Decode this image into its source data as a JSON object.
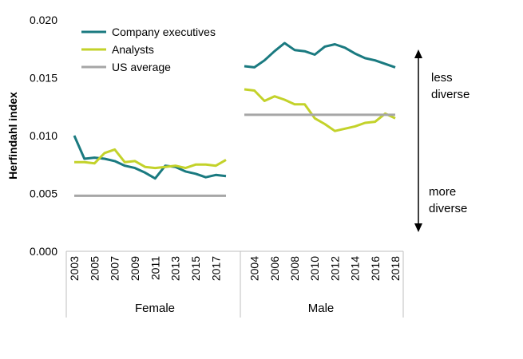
{
  "chart_data": {
    "type": "line",
    "title": "",
    "ylabel": "Herfindahl index",
    "ylim": [
      0,
      0.02
    ],
    "yticks": [
      "0.000",
      "0.005",
      "0.010",
      "0.015",
      "0.020"
    ],
    "grid": false,
    "legend_position": "top-left",
    "colors": {
      "Company executives": "#1a7a80",
      "Analysts": "#c3d22a",
      "US average": "#a6a6a6"
    },
    "groups": [
      {
        "name": "Female",
        "x": [
          2003,
          2004,
          2005,
          2006,
          2007,
          2008,
          2009,
          2010,
          2011,
          2012,
          2013,
          2014,
          2015,
          2016,
          2017,
          2018
        ],
        "xticks": [
          "2003",
          "2005",
          "2007",
          "2009",
          "2011",
          "2013",
          "2015",
          "2017"
        ],
        "series": [
          {
            "name": "Company executives",
            "values": [
              0.01,
              0.008,
              0.0081,
              0.008,
              0.0078,
              0.0074,
              0.0072,
              0.0068,
              0.0063,
              0.0074,
              0.0073,
              0.0069,
              0.0067,
              0.0064,
              0.0066,
              0.0065
            ]
          },
          {
            "name": "Analysts",
            "values": [
              0.0077,
              0.0077,
              0.0076,
              0.0085,
              0.0088,
              0.0077,
              0.0078,
              0.0073,
              0.0072,
              0.0073,
              0.0074,
              0.0072,
              0.0075,
              0.0075,
              0.0074,
              0.0079
            ]
          },
          {
            "name": "US average",
            "values": [
              0.0048,
              0.0048,
              0.0048,
              0.0048,
              0.0048,
              0.0048,
              0.0048,
              0.0048,
              0.0048,
              0.0048,
              0.0048,
              0.0048,
              0.0048,
              0.0048,
              0.0048,
              0.0048
            ]
          }
        ]
      },
      {
        "name": "Male",
        "x": [
          2003,
          2004,
          2005,
          2006,
          2007,
          2008,
          2009,
          2010,
          2011,
          2012,
          2013,
          2014,
          2015,
          2016,
          2017,
          2018
        ],
        "xticks": [
          "2004",
          "2006",
          "2008",
          "2010",
          "2012",
          "2014",
          "2016",
          "2018"
        ],
        "series": [
          {
            "name": "Company executives",
            "values": [
              0.016,
              0.0159,
              0.0165,
              0.0173,
              0.018,
              0.0174,
              0.0173,
              0.017,
              0.0177,
              0.0179,
              0.0176,
              0.0171,
              0.0167,
              0.0165,
              0.0162,
              0.0159
            ]
          },
          {
            "name": "Analysts",
            "values": [
              0.014,
              0.0139,
              0.013,
              0.0134,
              0.0131,
              0.0127,
              0.0127,
              0.0115,
              0.011,
              0.0104,
              0.0106,
              0.0108,
              0.0111,
              0.0112,
              0.0119,
              0.0115
            ]
          },
          {
            "name": "US average",
            "values": [
              0.0118,
              0.0118,
              0.0118,
              0.0118,
              0.0118,
              0.0118,
              0.0118,
              0.0118,
              0.0118,
              0.0118,
              0.0118,
              0.0118,
              0.0118,
              0.0118,
              0.0118,
              0.0118
            ]
          }
        ]
      }
    ],
    "annotations": {
      "top_line1": "less",
      "top_line2": "diverse",
      "bottom_line1": "more",
      "bottom_line2": "diverse"
    }
  }
}
